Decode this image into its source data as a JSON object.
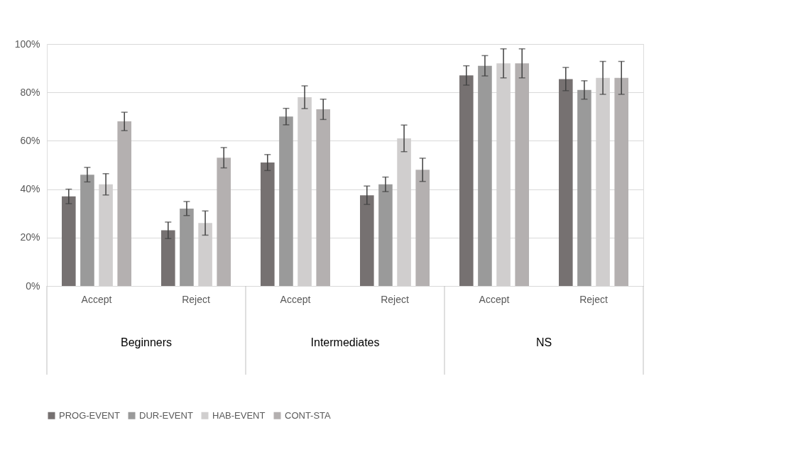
{
  "chart_data": {
    "type": "bar",
    "categories": [
      "Accept",
      "Reject",
      "Accept",
      "Reject",
      "Accept",
      "Reject"
    ],
    "annotations": [
      "Beginners",
      "Intermediates",
      "NS"
    ],
    "series": [
      {
        "name": "PROG-EVENT",
        "color": "#767171",
        "values": [
          37,
          23,
          51,
          37.5,
          87,
          85.5
        ],
        "errors": [
          3,
          3.4,
          3.3,
          3.8,
          4,
          4.8
        ]
      },
      {
        "name": "DUR-EVENT",
        "color": "#9a9a9a",
        "values": [
          46,
          32,
          70,
          42,
          91,
          81
        ],
        "errors": [
          3,
          2.9,
          3.4,
          3,
          4.2,
          3.8
        ]
      },
      {
        "name": "HAB-EVENT",
        "color": "#d0cece",
        "values": [
          42,
          26,
          78,
          61,
          92,
          86
        ],
        "errors": [
          4.4,
          5,
          4.7,
          5.5,
          6,
          6.8
        ]
      },
      {
        "name": "CONT-STA",
        "color": "#b4b0b0",
        "values": [
          68,
          53,
          73,
          48,
          92,
          86
        ],
        "errors": [
          3.8,
          4.2,
          4.2,
          4.8,
          6,
          6.8
        ]
      }
    ],
    "ylim": [
      0,
      100
    ],
    "yticks": [
      {
        "value": 0,
        "label": "0%"
      },
      {
        "value": 20,
        "label": "20%"
      },
      {
        "value": 40,
        "label": "40%"
      },
      {
        "value": 60,
        "label": "60%"
      },
      {
        "value": 80,
        "label": "80%"
      },
      {
        "value": 100,
        "label": "100%"
      }
    ],
    "grid": "y",
    "legend": "bottom"
  }
}
